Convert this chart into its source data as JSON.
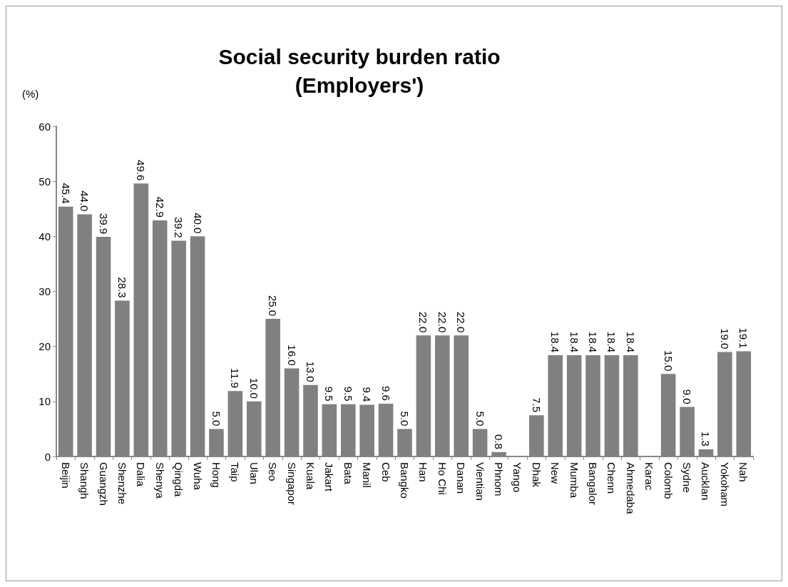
{
  "chart_data": {
    "type": "bar",
    "title": "Social security burden ratio\n(Employers')",
    "ylabel": "(%)",
    "categories": [
      "Beijin",
      "Shangh",
      "Guangzh",
      "Shenzhe",
      "Dalia",
      "Shenya",
      "Qingda",
      "Wuha",
      "Hong",
      "Taip",
      "Ulan",
      "Seo",
      "Singapor",
      "Kuala",
      "Jakart",
      "Bata",
      "Manil",
      "Ceb",
      "Bangko",
      "Han",
      "Ho Chi",
      "Danan",
      "Vientian",
      "Phnom",
      "Yango",
      "Dhak",
      "New",
      "Mumba",
      "Bangalor",
      "Chenn",
      "Ahmedaba",
      "Karac",
      "Colomb",
      "Sydne",
      "Aucklan",
      "Yokoham",
      "Nah"
    ],
    "values": [
      45.4,
      44.0,
      39.9,
      28.3,
      49.6,
      42.9,
      39.2,
      40.0,
      5.0,
      11.9,
      10.0,
      25.0,
      16.0,
      13.0,
      9.5,
      9.5,
      9.4,
      9.6,
      5.0,
      22.0,
      22.0,
      22.0,
      5.0,
      0.8,
      null,
      7.5,
      18.4,
      18.4,
      18.4,
      18.4,
      18.4,
      null,
      15.0,
      9.0,
      1.3,
      19.0,
      19.1
    ],
    "value_labels": [
      "45.4",
      "44.0",
      "39.9",
      "28.3",
      "49.6",
      "42.9",
      "39.2",
      "40.0",
      "5.0",
      "11.9",
      "10.0",
      "25.0",
      "16.0",
      "13.0",
      "9.5",
      "9.5",
      "9.4",
      "9.6",
      "5.0",
      "22.0",
      "22.0",
      "22.0",
      "5.0",
      "0.8",
      null,
      "7.5",
      "18.4",
      "18.4",
      "18.4",
      "18.4",
      "18.4",
      null,
      "15.0",
      "9.0",
      "1.3",
      "19.0",
      "19.1"
    ],
    "color": "#808080",
    "ylim": [
      0,
      60
    ],
    "yticks": [
      0,
      10,
      20,
      30,
      40,
      50,
      60
    ],
    "grid": false
  }
}
